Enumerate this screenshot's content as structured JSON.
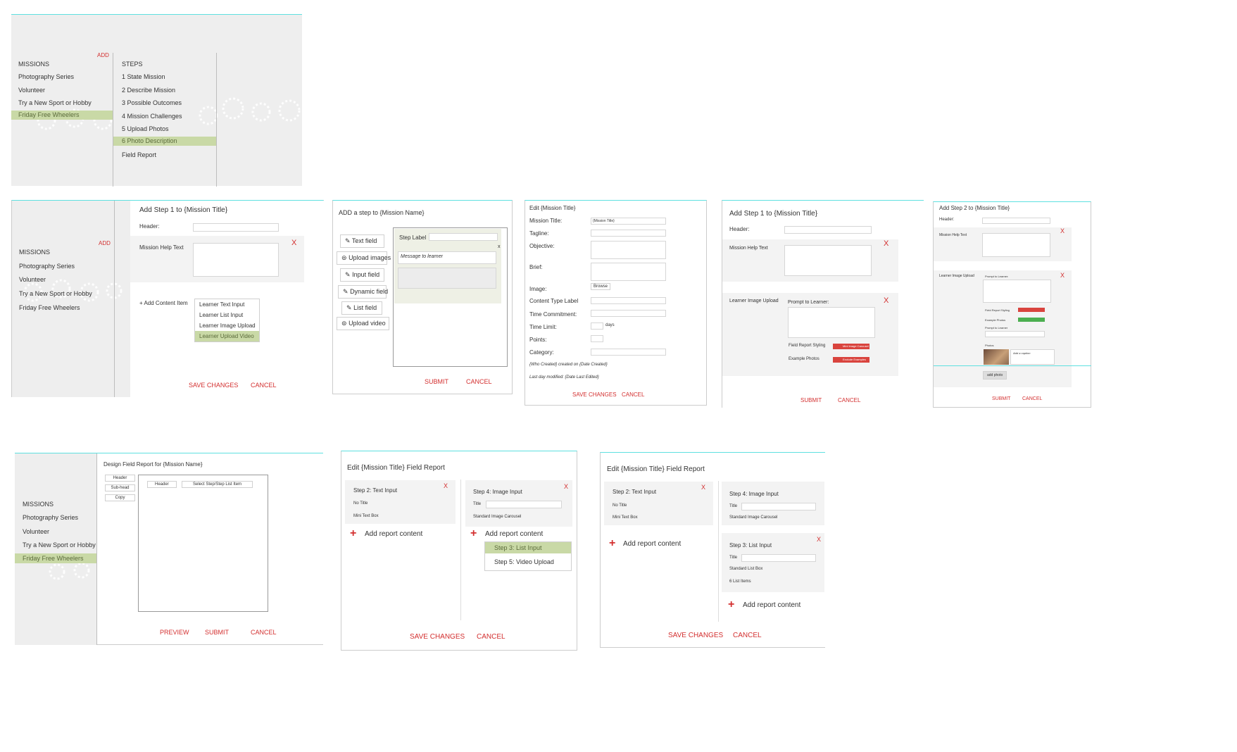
{
  "screen1": {
    "add": "ADD",
    "missions_heading": "MISSIONS",
    "missions": [
      "Photography Series",
      "Volunteer",
      "Try a New Sport or Hobby",
      "Friday Free Wheelers"
    ],
    "steps_heading": "STEPS",
    "steps": [
      "1 State Mission",
      "2 Describe Mission",
      "3 Possible Outcomes",
      "4 Mission Challenges",
      "5 Upload Photos",
      "6 Photo Description",
      "Field Report"
    ]
  },
  "screen2": {
    "title": "Add Step 1 to {Mission Title}",
    "header_label": "Header:",
    "help_label": "Mission Help Text",
    "close": "X",
    "add": "ADD",
    "missions_heading": "MISSIONS",
    "missions": [
      "Photography Series",
      "Volunteer",
      "Try a New Sport or Hobby",
      "Friday Free Wheelers"
    ],
    "add_content": "+  Add Content Item",
    "options": [
      "Learner Text Input",
      "Learner List Input",
      "Learner Image Upload",
      "Learner Upload Video"
    ],
    "save": "SAVE CHANGES",
    "cancel": "CANCEL"
  },
  "screen3": {
    "title": "ADD a step to {Mission Name}",
    "tools": [
      "Text field",
      "Upload images",
      "Input field",
      "Dynamic field",
      "List field",
      "Upload video"
    ],
    "step_label": "Step Label",
    "message": "Message to learner",
    "close": "x",
    "submit": "SUBMIT",
    "cancel": "CANCEL"
  },
  "screen4": {
    "title": "Edit {Mission Title}",
    "fields": [
      "Mission Title:",
      "Tagline:",
      "Objective:",
      "Brief:",
      "Image:",
      "Content Type Label",
      "Time Commitment:",
      "Time Limit:",
      "Points:",
      "Category:"
    ],
    "title_value": "{Mission Title}",
    "browse": "Browse",
    "days": "days",
    "who": "{Who Created} created on {Date Created}",
    "modified": "Last day modified: {Date Last Edited}",
    "save": "SAVE CHANGES",
    "cancel": "CANCEL"
  },
  "screen5": {
    "title": "Add Step 1 to {Mission Title}",
    "header_label": "Header:",
    "help_label": "Mission Help Text",
    "upload_label": "Learner Image Upload",
    "prompt": "Prompt to Learner:",
    "styling": "Field Report Styling",
    "examples": "Example Photos",
    "styling_btn": "Mini Image Carousel",
    "examples_btn": "Exclude Examples",
    "close": "X",
    "submit": "SUBMIT",
    "cancel": "CANCEL"
  },
  "screen6": {
    "title": "Add Step 2 to {Mission Title}",
    "header_label": "Header:",
    "help_label": "Mission Help Text",
    "upload_label": "Learner Image Upload",
    "prompt": "Prompt to Learner:",
    "styling": "Field Report Styling",
    "examples": "Example Photos",
    "prompt2": "Prompt to Learner",
    "photos": "Photos",
    "caption": "Add a caption",
    "add_photo": "add photo",
    "close": "X",
    "submit": "SUBMIT",
    "cancel": "CANCEL"
  },
  "screen7": {
    "title": "Design Field Report for {Mission Name}",
    "tools": [
      "Header",
      "Sub-head",
      "Copy"
    ],
    "header": "Header",
    "select": "Select Step/Step List Item",
    "missions_heading": "MISSIONS",
    "missions": [
      "Photography Series",
      "Volunteer",
      "Try a New Sport or Hobby",
      "Friday Free Wheelers"
    ],
    "preview": "PREVIEW",
    "submit": "SUBMIT",
    "cancel": "CANCEL"
  },
  "screen8": {
    "title": "Edit {Mission Title} Field Report",
    "left_card_title": "Step 2: Text Input",
    "no_title": "No Title",
    "mini_text": "Mini Text Box",
    "right_card_title": "Step 4: Image Input",
    "title_label": "Title",
    "carousel": "Standard Image Carousel",
    "add_report": "Add report content",
    "options": [
      "Step 3: List Input",
      "Step 5: Video Upload"
    ],
    "close": "X",
    "save": "SAVE CHANGES",
    "cancel": "CANCEL"
  },
  "screen9": {
    "title": "Edit {Mission Title} Field Report",
    "left_card_title": "Step 2: Text Input",
    "no_title": "No Title",
    "mini_text": "Mini Text Box",
    "card1_title": "Step 4: Image Input",
    "title_label": "Title",
    "carousel": "Standard Image Carousel",
    "card2_title": "Step 3: List Input",
    "list_box": "Standard List Box",
    "list_items": "6 List Items",
    "add_report": "Add report content",
    "close": "X",
    "save": "SAVE CHANGES",
    "cancel": "CANCEL"
  }
}
